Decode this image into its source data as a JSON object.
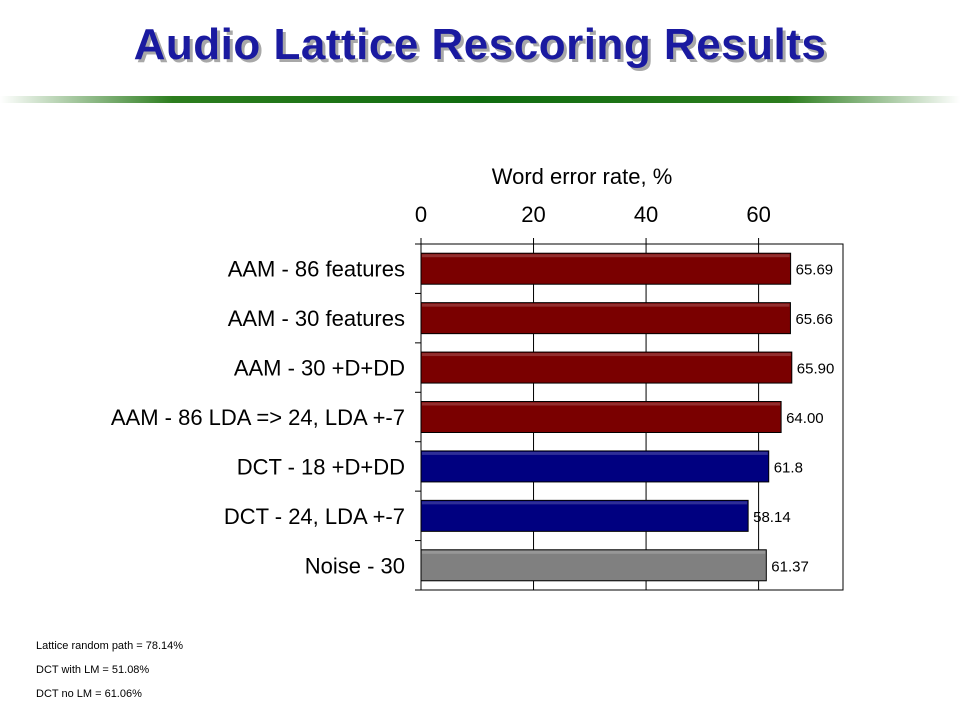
{
  "slide": {
    "title": "Audio Lattice Rescoring Results"
  },
  "notes": [
    "Lattice random path = 78.14%",
    "DCT with LM = 51.08%",
    "DCT no LM = 61.06%"
  ],
  "colors": {
    "title": "#1a1aa0",
    "aam": "#7a0000",
    "dct": "#000080",
    "noise": "#808080"
  },
  "chart_data": {
    "type": "bar",
    "orientation": "horizontal",
    "xlabel": "Word error rate, %",
    "x_axis_position": "top",
    "xlim": [
      0,
      75
    ],
    "xticks": [
      0,
      20,
      40,
      60
    ],
    "grid": true,
    "categories": [
      "AAM - 86 features",
      "AAM - 30 features",
      "AAM - 30 +D+DD",
      "AAM - 86 LDA => 24, LDA +-7",
      "DCT - 18 +D+DD",
      "DCT - 24, LDA +-7",
      "Noise - 30"
    ],
    "values": [
      65.69,
      65.66,
      65.9,
      64.0,
      61.8,
      58.14,
      61.37
    ],
    "data_labels": [
      "65.69",
      "65.66",
      "65.90",
      "64.00",
      "61.8",
      "58.14",
      "61.37"
    ],
    "bar_colors": [
      "#7a0000",
      "#7a0000",
      "#7a0000",
      "#7a0000",
      "#000080",
      "#000080",
      "#808080"
    ]
  }
}
